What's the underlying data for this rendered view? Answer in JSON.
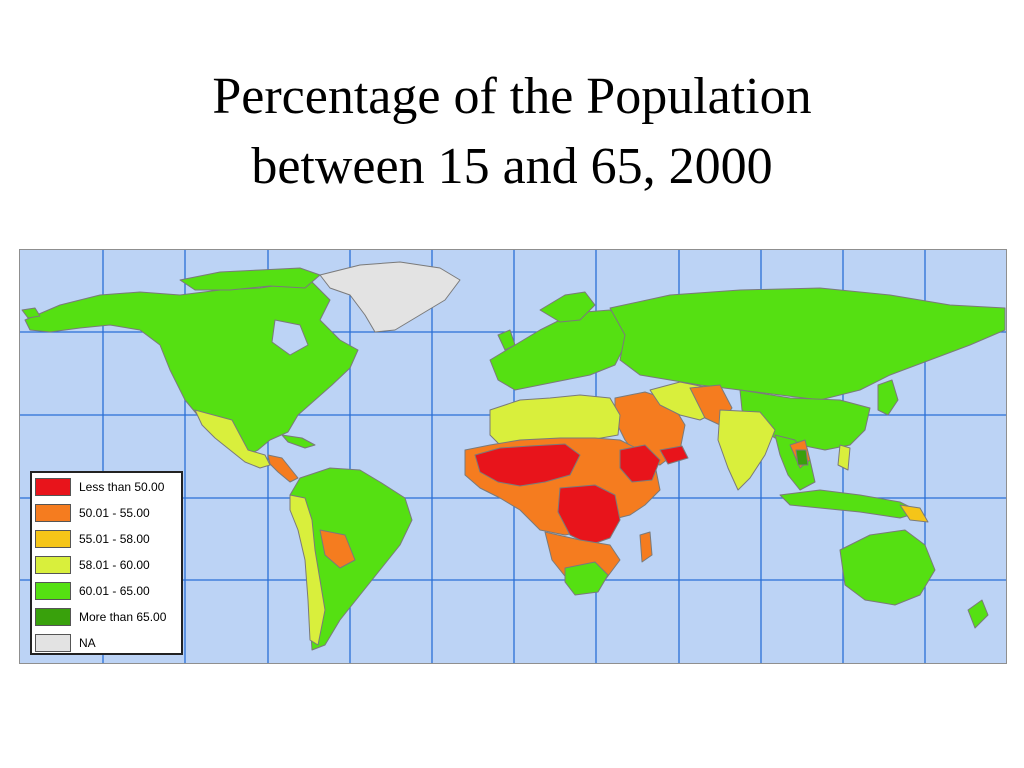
{
  "title": {
    "line1": "Percentage of the Population",
    "line2": "between 15 and 65, 2000"
  },
  "colors": {
    "ocean": "#bcd3f5",
    "grid": "#2a6fd6",
    "border": "#7a7a7a",
    "less_than_50": "#e8141b",
    "c50_55": "#f57c1f",
    "c55_58": "#f5c518",
    "c58_60": "#d9ef3c",
    "c60_65": "#55e012",
    "more_than_65": "#39a10c",
    "na": "#e3e3e3"
  },
  "legend": {
    "items": [
      {
        "label": "Less than 50.00",
        "color": "#e8141b"
      },
      {
        "label": "50.01 - 55.00",
        "color": "#f57c1f"
      },
      {
        "label": "55.01 - 58.00",
        "color": "#f5c518"
      },
      {
        "label": "58.01 - 60.00",
        "color": "#d9ef3c"
      },
      {
        "label": "60.01 - 65.00",
        "color": "#55e012"
      },
      {
        "label": "More than 65.00",
        "color": "#39a10c"
      },
      {
        "label": "NA",
        "color": "#e3e3e3"
      }
    ]
  }
}
